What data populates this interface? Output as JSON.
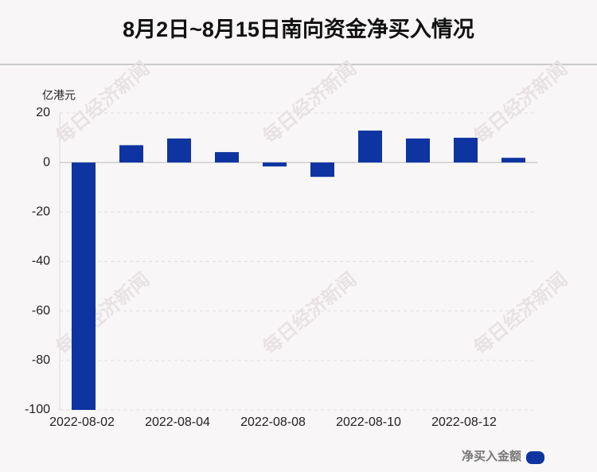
{
  "chart_data": {
    "type": "bar",
    "title": "8月2日~8月15日南向资金净买入情况",
    "y_unit": "亿港元",
    "watermark": "每日经济新闻",
    "categories": [
      "2022-08-02",
      null,
      "2022-08-04",
      null,
      "2022-08-08",
      null,
      "2022-08-10",
      null,
      "2022-08-12",
      null
    ],
    "series": [
      {
        "name": "净买入金额",
        "color": "#0d34a0",
        "values": [
          -100,
          7,
          9.7,
          4.2,
          -1.6,
          -5.8,
          12.9,
          9.7,
          10,
          1.9
        ]
      }
    ],
    "ylim": [
      -100,
      20
    ],
    "yticks": [
      -100,
      -80,
      -60,
      -40,
      -20,
      0,
      20
    ],
    "grid": true,
    "legend": "bottom-right"
  }
}
